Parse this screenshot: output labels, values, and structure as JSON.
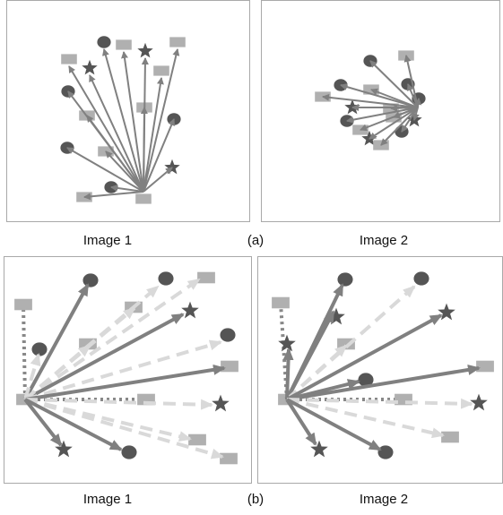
{
  "captions": {
    "a_left": "Image 1",
    "a_mid": "(a)",
    "a_right": "Image 2",
    "b_left": "Image 1",
    "b_mid": "(b)",
    "b_right": "Image 2"
  },
  "colors": {
    "dark_marker": "#555555",
    "light_marker": "#b0b0b0",
    "solid_arrow": "#808080",
    "dashed_arrow": "#d9d9d9",
    "dotted_line": "#888888",
    "frame": "#a9a9a9"
  },
  "marker_types": [
    "circle",
    "star",
    "square"
  ],
  "line_styles": [
    "solid",
    "dashed",
    "dotted"
  ]
}
